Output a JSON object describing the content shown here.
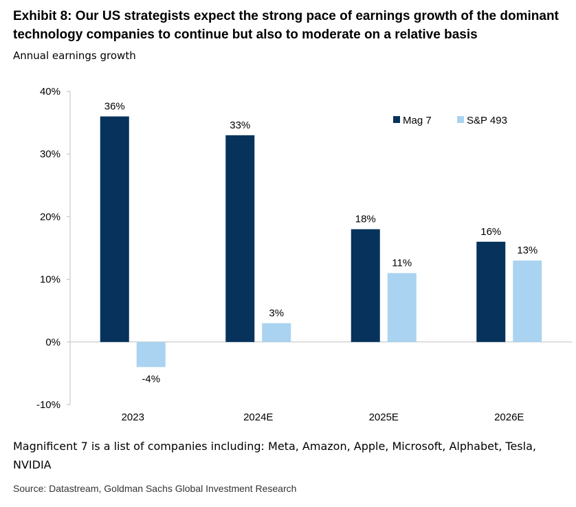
{
  "title": "Exhibit 8: Our US strategists expect the strong pace of earnings growth of the dominant technology companies to continue but also to moderate on a relative basis",
  "subtitle": "Annual earnings growth",
  "note": "Magnificent 7 is a list of companies including: Meta, Amazon, Apple, Microsoft, Alphabet, Tesla, NVIDIA",
  "source": "Source: Datastream, Goldman Sachs Global Investment Research",
  "chart_data": {
    "type": "bar",
    "categories": [
      "2023",
      "2024E",
      "2025E",
      "2026E"
    ],
    "series": [
      {
        "name": "Mag 7",
        "values": [
          36,
          33,
          18,
          16
        ],
        "labels": [
          "36%",
          "33%",
          "18%",
          "16%"
        ],
        "color": "#06325c"
      },
      {
        "name": "S&P 493",
        "values": [
          -4,
          3,
          11,
          13
        ],
        "labels": [
          "-4%",
          "3%",
          "11%",
          "13%"
        ],
        "color": "#a9d3f0"
      }
    ],
    "ylim": [
      -10,
      40
    ],
    "yticks": [
      -10,
      0,
      10,
      20,
      30,
      40
    ],
    "ytick_labels": [
      "-10%",
      "0%",
      "10%",
      "20%",
      "30%",
      "40%"
    ],
    "legend_position": "top-right",
    "grid": false
  }
}
